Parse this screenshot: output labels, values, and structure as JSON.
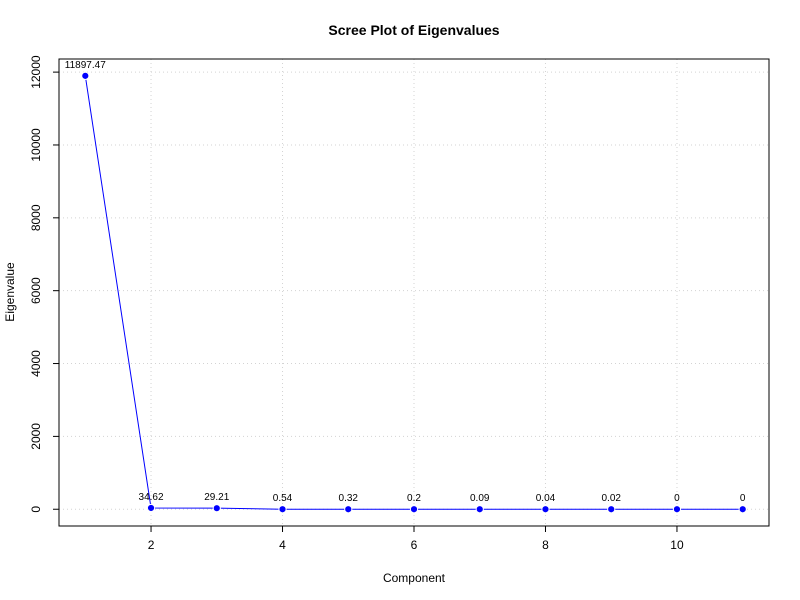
{
  "chart_data": {
    "type": "line",
    "title": "Scree Plot of Eigenvalues",
    "xlabel": "Component",
    "ylabel": "Eigenvalue",
    "x": [
      1,
      2,
      3,
      4,
      5,
      6,
      7,
      8,
      9,
      10,
      11
    ],
    "series": [
      {
        "values": [
          11897.47,
          34.62,
          29.21,
          0.54,
          0.32,
          0.2,
          0.09,
          0.04,
          0.02,
          0,
          0
        ]
      }
    ],
    "data_labels": [
      "11897.47",
      "34.62",
      "29.21",
      "0.54",
      "0.32",
      "0.2",
      "0.09",
      "0.04",
      "0.02",
      "0",
      "0"
    ],
    "xlim": [
      0.6,
      11.4
    ],
    "ylim": [
      -460,
      12360
    ],
    "x_ticks": [
      2,
      4,
      6,
      8,
      10
    ],
    "x_tick_labels": [
      "2",
      "4",
      "6",
      "8",
      "10"
    ],
    "y_ticks": [
      0,
      2000,
      4000,
      6000,
      8000,
      10000,
      12000
    ],
    "y_tick_labels": [
      "0",
      "2000",
      "4000",
      "6000",
      "8000",
      "10000",
      "12000"
    ],
    "grid": true,
    "line_color": "#0000ff",
    "point_color": "#0000ff"
  }
}
